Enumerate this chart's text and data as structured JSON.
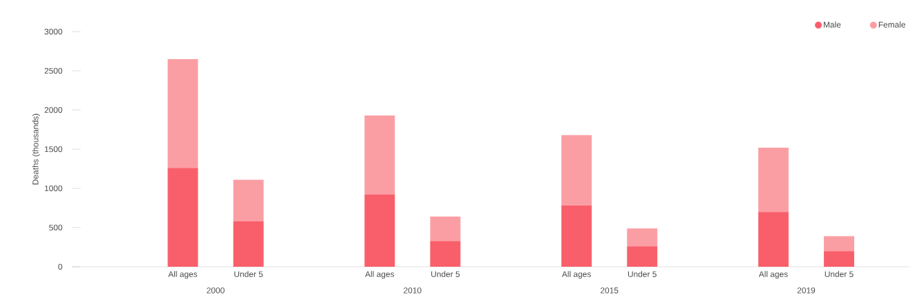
{
  "chart_data": {
    "type": "bar",
    "stacked": true,
    "ylabel": "Deaths (thousands)",
    "categories": [
      "All ages",
      "Under 5",
      "All ages",
      "Under 5",
      "All ages",
      "Under 5",
      "All ages",
      "Under 5"
    ],
    "annotations": [
      "2000",
      "2010",
      "2015",
      "2019"
    ],
    "series": [
      {
        "name": "Male",
        "color": "#f95f6a",
        "values": [
          1260,
          580,
          920,
          330,
          780,
          260,
          700,
          200
        ]
      },
      {
        "name": "Female",
        "color": "#fb9ea4",
        "values": [
          1390,
          530,
          1010,
          310,
          900,
          230,
          820,
          190
        ]
      }
    ],
    "ylim": [
      0,
      3000
    ],
    "yticks": [
      0,
      500,
      1000,
      1500,
      2000,
      2500,
      3000
    ],
    "grid": false,
    "legend": "top right"
  }
}
